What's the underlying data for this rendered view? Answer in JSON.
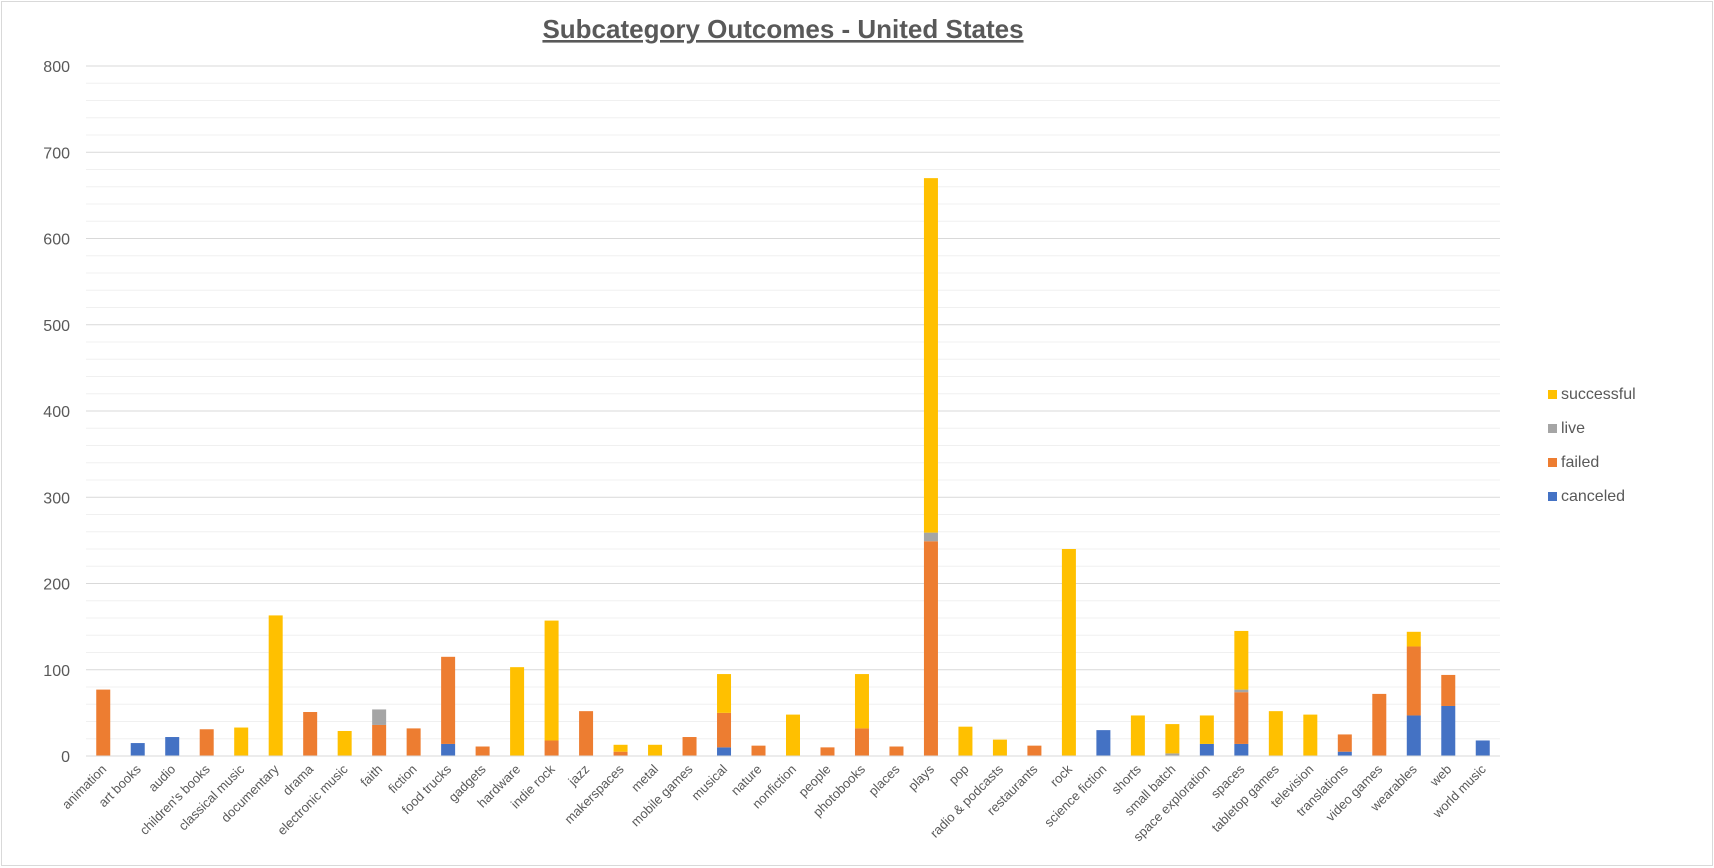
{
  "chart_data": {
    "type": "bar",
    "stacked": true,
    "title": "Subcategory Outcomes - United States",
    "xlabel": "",
    "ylabel": "",
    "ylim": [
      0,
      800
    ],
    "yticks": [
      0,
      100,
      200,
      300,
      400,
      500,
      600,
      700,
      800
    ],
    "grid": true,
    "legend_position": "right",
    "categories": [
      "animation",
      "art books",
      "audio",
      "children's books",
      "classical music",
      "documentary",
      "drama",
      "electronic music",
      "faith",
      "fiction",
      "food trucks",
      "gadgets",
      "hardware",
      "indie rock",
      "jazz",
      "makerspaces",
      "metal",
      "mobile games",
      "musical",
      "nature",
      "nonfiction",
      "people",
      "photobooks",
      "places",
      "plays",
      "pop",
      "radio & podcasts",
      "restaurants",
      "rock",
      "science fiction",
      "shorts",
      "small batch",
      "space exploration",
      "spaces",
      "tabletop games",
      "television",
      "translations",
      "video games",
      "wearables",
      "web",
      "world music"
    ],
    "series": [
      {
        "name": "canceled",
        "color": "#4472C4",
        "values": [
          0,
          15,
          22,
          0,
          0,
          0,
          0,
          0,
          0,
          0,
          14,
          0,
          0,
          0,
          0,
          0,
          0,
          0,
          10,
          0,
          0,
          0,
          0,
          0,
          0,
          0,
          0,
          0,
          0,
          30,
          0,
          0,
          14,
          14,
          0,
          0,
          5,
          0,
          47,
          58,
          18
        ]
      },
      {
        "name": "failed",
        "color": "#ED7D31",
        "values": [
          77,
          0,
          0,
          31,
          0,
          0,
          51,
          0,
          36,
          32,
          101,
          11,
          0,
          18,
          52,
          5,
          0,
          22,
          40,
          12,
          0,
          10,
          32,
          11,
          249,
          0,
          0,
          12,
          0,
          0,
          0,
          0,
          0,
          60,
          0,
          0,
          20,
          72,
          80,
          36,
          0
        ]
      },
      {
        "name": "live",
        "color": "#A5A5A5",
        "values": [
          0,
          0,
          0,
          0,
          0,
          0,
          0,
          0,
          18,
          0,
          0,
          0,
          0,
          0,
          0,
          0,
          0,
          0,
          0,
          0,
          0,
          0,
          0,
          0,
          10,
          0,
          0,
          0,
          0,
          0,
          0,
          3,
          0,
          3,
          0,
          0,
          0,
          0,
          0,
          0,
          0
        ]
      },
      {
        "name": "successful",
        "color": "#FFC000",
        "values": [
          0,
          0,
          0,
          0,
          33,
          163,
          0,
          29,
          0,
          0,
          0,
          0,
          103,
          139,
          0,
          8,
          13,
          0,
          45,
          0,
          48,
          0,
          63,
          0,
          411,
          34,
          19,
          0,
          240,
          0,
          47,
          34,
          33,
          68,
          52,
          48,
          0,
          0,
          17,
          0,
          0
        ]
      }
    ],
    "legend_order": [
      "successful",
      "live",
      "failed",
      "canceled"
    ]
  }
}
